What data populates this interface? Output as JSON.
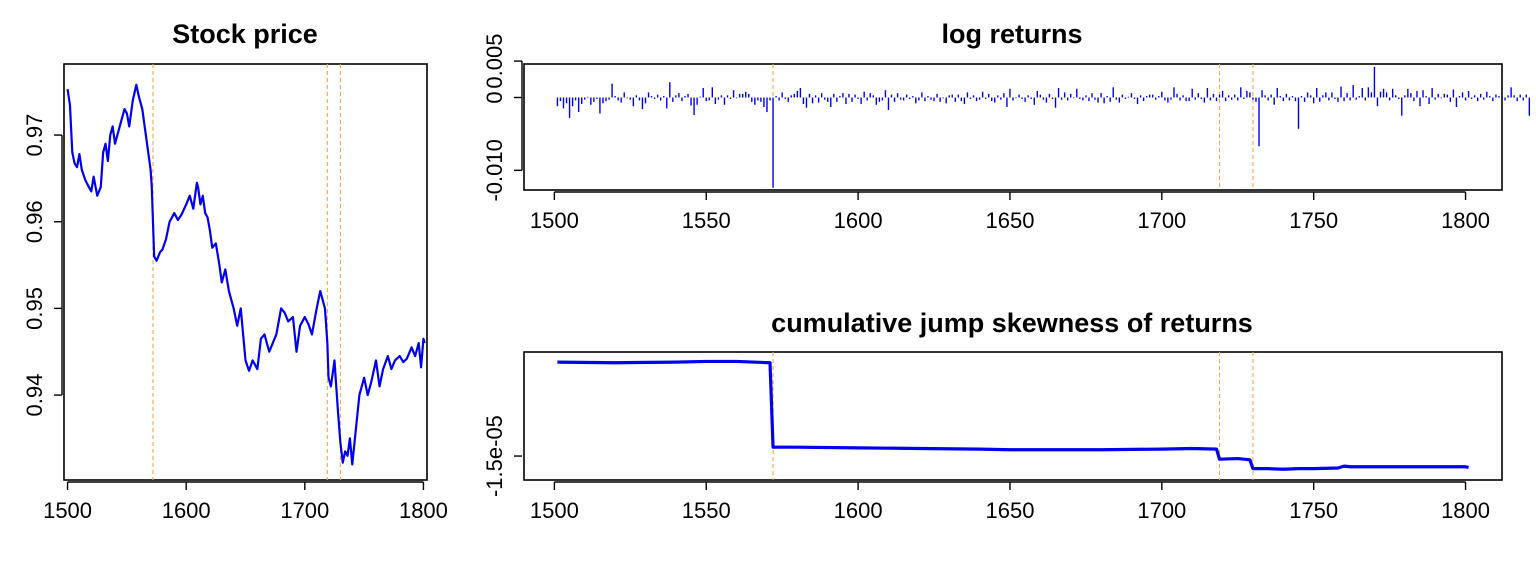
{
  "colors": {
    "series": "#0000ee",
    "jump_marker": "#f5a54a",
    "axis": "#000000"
  },
  "chart_data": [
    {
      "id": "stock",
      "type": "line",
      "title": "Stock price",
      "xlabel": "",
      "ylabel": "",
      "xlim": [
        1497,
        1803
      ],
      "ylim": [
        0.9302,
        0.9782
      ],
      "x_ticks": [
        1500,
        1600,
        1700,
        1800
      ],
      "x_tick_labels": [
        "1500",
        "1600",
        "1700",
        "1800"
      ],
      "y_ticks": [
        0.94,
        0.95,
        0.96,
        0.97
      ],
      "y_tick_labels": [
        "0.94",
        "0.95",
        "0.96",
        "0.97"
      ],
      "jump_lines": [
        1572,
        1719,
        1730
      ],
      "series": [
        {
          "x": [
            1500,
            1502,
            1504,
            1506,
            1508,
            1510,
            1512,
            1515,
            1518,
            1520,
            1522,
            1525,
            1528,
            1530,
            1532,
            1534,
            1536,
            1538,
            1540,
            1542,
            1545,
            1548,
            1550,
            1552,
            1555,
            1558,
            1560,
            1563,
            1566,
            1568,
            1570,
            1571,
            1572,
            1573,
            1575,
            1578,
            1580,
            1583,
            1586,
            1590,
            1593,
            1596,
            1600,
            1603,
            1606,
            1609,
            1610,
            1612,
            1614,
            1616,
            1618,
            1620,
            1622,
            1625,
            1628,
            1630,
            1633,
            1636,
            1640,
            1643,
            1646,
            1650,
            1653,
            1656,
            1660,
            1663,
            1666,
            1670,
            1673,
            1676,
            1680,
            1683,
            1686,
            1690,
            1693,
            1696,
            1700,
            1703,
            1706,
            1710,
            1713,
            1715,
            1717,
            1719,
            1720,
            1722,
            1725,
            1728,
            1730,
            1732,
            1734,
            1736,
            1738,
            1740,
            1743,
            1746,
            1750,
            1753,
            1756,
            1760,
            1763,
            1766,
            1770,
            1773,
            1776,
            1780,
            1783,
            1786,
            1790,
            1793,
            1796,
            1798,
            1800,
            1801
          ],
          "values": [
            0.9753,
            0.9735,
            0.968,
            0.9667,
            0.9663,
            0.9678,
            0.966,
            0.9648,
            0.964,
            0.9635,
            0.9652,
            0.963,
            0.964,
            0.968,
            0.969,
            0.967,
            0.97,
            0.971,
            0.969,
            0.97,
            0.9715,
            0.973,
            0.9725,
            0.971,
            0.974,
            0.9758,
            0.9745,
            0.973,
            0.97,
            0.968,
            0.966,
            0.964,
            0.96,
            0.956,
            0.9555,
            0.9565,
            0.9568,
            0.958,
            0.96,
            0.961,
            0.9602,
            0.9608,
            0.962,
            0.963,
            0.9615,
            0.9645,
            0.964,
            0.962,
            0.963,
            0.961,
            0.9605,
            0.959,
            0.957,
            0.9575,
            0.955,
            0.953,
            0.9545,
            0.952,
            0.95,
            0.948,
            0.95,
            0.944,
            0.9428,
            0.944,
            0.943,
            0.9465,
            0.947,
            0.945,
            0.946,
            0.947,
            0.95,
            0.9495,
            0.9485,
            0.949,
            0.945,
            0.948,
            0.949,
            0.9482,
            0.947,
            0.95,
            0.952,
            0.951,
            0.95,
            0.946,
            0.942,
            0.941,
            0.944,
            0.938,
            0.9345,
            0.9322,
            0.9335,
            0.933,
            0.935,
            0.932,
            0.936,
            0.94,
            0.942,
            0.94,
            0.9415,
            0.944,
            0.941,
            0.943,
            0.9445,
            0.943,
            0.944,
            0.9445,
            0.9438,
            0.9442,
            0.9455,
            0.9445,
            0.946,
            0.9432,
            0.9465,
            0.946
          ]
        }
      ]
    },
    {
      "id": "logret",
      "type": "bar",
      "title": "log returns",
      "xlabel": "",
      "ylabel": "",
      "xlim": [
        1490,
        1812
      ],
      "ylim": [
        -0.0127,
        0.0046
      ],
      "x_ticks": [
        1500,
        1550,
        1600,
        1650,
        1700,
        1750,
        1800
      ],
      "x_tick_labels": [
        "1500",
        "1550",
        "1600",
        "1650",
        "1700",
        "1750",
        "1800"
      ],
      "y_ticks": [
        0.005,
        0,
        -0.01
      ],
      "y_tick_labels": [
        "0.005",
        "0",
        "-0.010"
      ],
      "jump_lines": [
        1572,
        1719,
        1730
      ],
      "series": [
        {
          "x_start": 1501,
          "values": [
            -0.0012,
            -0.0005,
            -0.0015,
            -0.0008,
            -0.0028,
            -0.0012,
            -0.0004,
            -0.002,
            -0.0009,
            -0.0003,
            0.0001,
            -0.001,
            -0.0006,
            -0.0002,
            -0.0022,
            -0.0008,
            -0.0005,
            -0.0003,
            0.0019,
            0.0002,
            -0.0004,
            -0.0007,
            0.0007,
            -0.0001,
            -0.0003,
            -0.0012,
            0.0003,
            -0.0004,
            -0.0016,
            -0.0008,
            0.0007,
            0.0002,
            -0.0002,
            0.0004,
            -0.0004,
            0.0002,
            -0.0015,
            0.0021,
            -0.0006,
            0.0003,
            0.0006,
            -0.0005,
            0.0002,
            0.0005,
            -0.0011,
            -0.0024,
            -0.001,
            0.0001,
            0.0013,
            -0.0005,
            -0.0004,
            0.0014,
            -0.0009,
            -0.0003,
            0.0003,
            -0.001,
            0.0003,
            -0.0002,
            0.001,
            -0.0001,
            0.0005,
            0.0005,
            0.0008,
            0.0005,
            -0.0006,
            -0.001,
            -0.0004,
            -0.0006,
            -0.0013,
            -0.002,
            -0.0004,
            -0.0124,
            0.0002,
            -0.0004,
            0.0007,
            -0.0002,
            -0.0006,
            0.0003,
            0.0005,
            0.0009,
            0.0013,
            -0.0009,
            -0.0014,
            0.0005,
            -0.0008,
            0.0003,
            -0.0007,
            0.0006,
            -0.0003,
            -0.0006,
            -0.0013,
            0.0005,
            -0.0006,
            0.0002,
            0.0006,
            -0.0009,
            0.0005,
            -0.0006,
            0.0004,
            -0.0002,
            -0.0009,
            0.0008,
            -0.0004,
            0.0006,
            0.0003,
            -0.001,
            -0.0006,
            -0.0004,
            0.001,
            -0.0017,
            0.0004,
            -0.0006,
            0.0006,
            -0.0003,
            -0.0004,
            0.0004,
            -0.0002,
            0.0002,
            -0.0008,
            -0.0004,
            0.0007,
            -0.0005,
            0.0002,
            -0.0003,
            -0.0005,
            0.0005,
            -0.0006,
            -0.0001,
            -0.0008,
            0.0003,
            0.0004,
            -0.0006,
            0.0004,
            -0.0005,
            -0.0009,
            0.0007,
            -0.0002,
            0.0003,
            -0.0005,
            -0.0003,
            0.0008,
            -0.0002,
            0.0005,
            -0.0005,
            -0.0007,
            0.0003,
            -0.0003,
            0.0006,
            -0.0013,
            0.0012,
            -0.0004,
            -0.0001,
            0.0004,
            -0.0002,
            -0.0006,
            0.0003,
            -0.0002,
            -0.001,
            0.0009,
            0.0004,
            -0.0003,
            -0.0007,
            0.0005,
            -0.0002,
            -0.0014,
            0.0013,
            -0.0003,
            0.0007,
            -0.0004,
            0.0005,
            -0.0001,
            0.0012,
            -0.0002,
            -0.0004,
            0.0003,
            -0.0005,
            0.0006,
            -0.0003,
            -0.0007,
            0.0006,
            -0.0008,
            0.0002,
            -0.0006,
            0.0014,
            -0.0003,
            -0.0007,
            0.0004,
            -0.0002,
            0.0001,
            0.0006,
            -0.0002,
            -0.0009,
            0.0003,
            -0.0005,
            0.0002,
            0.0004,
            0.0004,
            -0.0003,
            0.0002,
            0.0008,
            -0.0004,
            -0.0007,
            -0.0003,
            0.0014,
            0.0005,
            -0.0004,
            0.0003,
            -0.0005,
            -0.0005,
            0.0012,
            -0.0003,
            0.0006,
            -0.0002,
            -0.0007,
            0.0013,
            -0.0004,
            0.0005,
            -0.0005,
            0.0004,
            0.0009,
            -0.0005,
            0.0003,
            -0.0003,
            0.0004,
            -0.0004,
            0.0014,
            -0.0002,
            0.0009,
            0.0007,
            -0.0003,
            -0.0006,
            -0.0067,
            0.001,
            0.0003,
            -0.0004,
            0.0004,
            -0.001,
            0.0013,
            0.0002,
            -0.0005,
            0.0005,
            -0.0004,
            0.0002,
            -0.0005,
            -0.0043,
            0.0002,
            -0.0006,
            0.0007,
            0.0003,
            -0.0008,
            0.0013,
            -0.0006,
            0.0003,
            0.0007,
            -0.0004,
            0.0007,
            -0.0002,
            -0.0006,
            0.0015,
            -0.0005,
            0.0006,
            -0.0004,
            0.0017,
            -0.0003,
            0.0002,
            0.0013,
            -0.0004,
            0.0014,
            0.0007,
            0.0042,
            -0.0012,
            0.0008,
            0.0012,
            0.0007,
            -0.0004,
            0.0012,
            0.0003,
            -0.0002,
            -0.0025,
            0.0003,
            0.0012,
            0.0006,
            -0.0005,
            0.0009,
            -0.0012,
            0.001,
            0.0002,
            -0.0009,
            0.0013,
            -0.0003,
            0.0005,
            -0.0001,
            0.0005,
            0.0004,
            -0.0006,
            0.0011,
            -0.0013,
            0.0002,
            0.0007,
            -0.0004,
            0.0009,
            -0.0002,
            0.0003,
            -0.0005,
            0.0005,
            -0.0003,
            0.0008,
            0.0002,
            -0.0005,
            0.0004,
            0.0002,
            -0.0002,
            -0.0004,
            0.0003,
            0.0014,
            0.0003,
            -0.0005,
            0.0004,
            -0.0004,
            0.0004,
            -0.0025
          ]
        }
      ]
    },
    {
      "id": "cumjump",
      "type": "line",
      "title": "cumulative jump skewness of returns",
      "xlabel": "",
      "ylabel": "",
      "xlim": [
        1490,
        1812
      ],
      "ylim": [
        -1.88e-05,
        1.5e-06
      ],
      "x_ticks": [
        1500,
        1550,
        1600,
        1650,
        1700,
        1750,
        1800
      ],
      "x_tick_labels": [
        "1500",
        "1550",
        "1600",
        "1650",
        "1700",
        "1750",
        "1800"
      ],
      "y_ticks": [
        -1.5e-05
      ],
      "y_tick_labels": [
        "-1.5e-05"
      ],
      "jump_lines": [
        1572,
        1719,
        1730
      ],
      "series": [
        {
          "x": [
            1501,
            1520,
            1540,
            1550,
            1560,
            1571,
            1572,
            1580,
            1600,
            1620,
            1640,
            1650,
            1660,
            1680,
            1700,
            1710,
            1718,
            1719,
            1725,
            1729,
            1730,
            1735,
            1740,
            1745,
            1750,
            1758,
            1760,
            1762,
            1770,
            1780,
            1790,
            1800,
            1801
          ],
          "values": [
            -1e-07,
            -2e-07,
            -1e-07,
            0.0,
            0.0,
            -2e-07,
            -1.36e-05,
            -1.36e-05,
            -1.37e-05,
            -1.38e-05,
            -1.39e-05,
            -1.4e-05,
            -1.4e-05,
            -1.4e-05,
            -1.39e-05,
            -1.38e-05,
            -1.39e-05,
            -1.55e-05,
            -1.54e-05,
            -1.56e-05,
            -1.7e-05,
            -1.7e-05,
            -1.71e-05,
            -1.7e-05,
            -1.7e-05,
            -1.69e-05,
            -1.66e-05,
            -1.67e-05,
            -1.67e-05,
            -1.67e-05,
            -1.67e-05,
            -1.67e-05,
            -1.68e-05
          ]
        }
      ]
    }
  ]
}
